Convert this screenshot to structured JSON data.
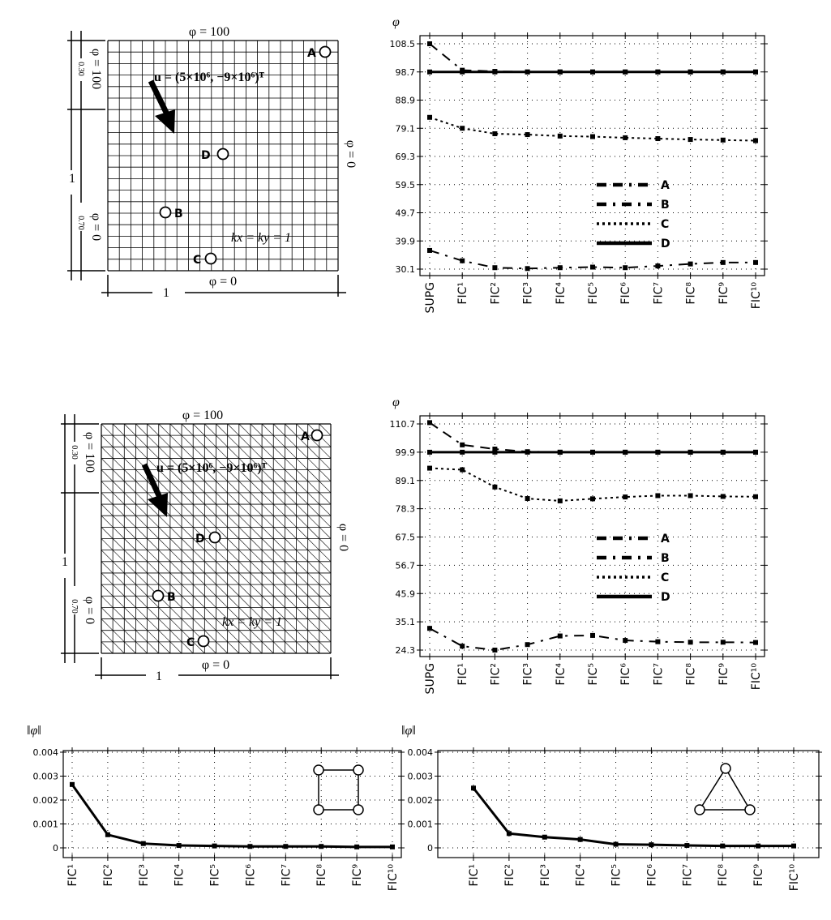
{
  "meshes": [
    {
      "mesh_type": "quadrilateral",
      "divisions": 20,
      "top_bc": "φ = 100",
      "bottom_bc": "φ = 0",
      "right_bc": "φ = 0",
      "left_upper_bc": "φ = 100",
      "left_lower_bc": "φ = 0",
      "left_upper_len": "0.30",
      "left_lower_len": "0.70",
      "height_label": "1",
      "width_label": "1",
      "velocity": "u = (5×10⁶, −9×10⁶)ᵀ",
      "diffusivity": "kx = ky = 1",
      "points": [
        "A",
        "B",
        "C",
        "D"
      ]
    },
    {
      "mesh_type": "triangular",
      "divisions": 20,
      "top_bc": "φ = 100",
      "bottom_bc": "φ = 0",
      "right_bc": "φ = 0",
      "left_upper_bc": "φ = 100",
      "left_lower_bc": "φ = 0",
      "left_upper_len": "0.30",
      "left_lower_len": "0.70",
      "height_label": "1",
      "width_label": "1",
      "velocity": "u = (5×10⁶, −9×10⁶)ᵀ",
      "diffusivity": "kx = ky = 1",
      "points": [
        "A",
        "B",
        "C",
        "D"
      ]
    }
  ],
  "chart_data": [
    {
      "type": "line",
      "ylabel": "φ",
      "categories": [
        "SUPG",
        "FIC¹",
        "FIC²",
        "FIC³",
        "FIC⁴",
        "FIC⁵",
        "FIC⁶",
        "FIC⁷",
        "FIC⁸",
        "FIC⁹",
        "FIC¹⁰"
      ],
      "yticks": [
        "30.1",
        "39.9",
        "49.7",
        "59.5",
        "69.3",
        "79.1",
        "88.9",
        "98.7",
        "108.5"
      ],
      "ylim": [
        30.1,
        108.5
      ],
      "grid": true,
      "legend": "center-right",
      "series": [
        {
          "name": "A",
          "style": "dash-dash-dot",
          "values": [
            108.5,
            99.3,
            98.9,
            98.7,
            98.7,
            98.7,
            98.7,
            98.7,
            98.7,
            98.7,
            98.7
          ]
        },
        {
          "name": "B",
          "style": "dash-dot",
          "values": [
            36.6,
            33.0,
            30.6,
            30.3,
            30.6,
            30.8,
            30.6,
            31.2,
            31.9,
            32.4,
            32.4
          ]
        },
        {
          "name": "C",
          "style": "dotted",
          "values": [
            82.9,
            79.1,
            77.2,
            76.9,
            76.4,
            76.2,
            75.8,
            75.5,
            75.2,
            75.0,
            74.8
          ]
        },
        {
          "name": "D",
          "style": "solid",
          "values": [
            98.7,
            98.7,
            98.7,
            98.7,
            98.7,
            98.7,
            98.7,
            98.7,
            98.7,
            98.7,
            98.7
          ]
        }
      ]
    },
    {
      "type": "line",
      "ylabel": "φ",
      "categories": [
        "SUPG",
        "FIC¹",
        "FIC²",
        "FIC³",
        "FIC⁴",
        "FIC⁵",
        "FIC⁶",
        "FIC⁷",
        "FIC⁸",
        "FIC⁹",
        "FIC¹⁰"
      ],
      "yticks": [
        "24.3",
        "35.1",
        "45.9",
        "56.7",
        "67.5",
        "78.3",
        "89.1",
        "99.9",
        "110.7"
      ],
      "ylim": [
        24.3,
        110.7
      ],
      "grid": true,
      "legend": "center-right",
      "series": [
        {
          "name": "A",
          "style": "dash-dash-dot",
          "values": [
            111.2,
            102.7,
            101.1,
            100.1,
            99.9,
            99.9,
            99.9,
            99.9,
            99.9,
            99.9,
            99.9
          ]
        },
        {
          "name": "B",
          "style": "dash-dot",
          "values": [
            32.6,
            25.8,
            24.3,
            26.4,
            29.7,
            29.9,
            28.0,
            27.5,
            27.3,
            27.3,
            27.2
          ]
        },
        {
          "name": "C",
          "style": "dotted",
          "values": [
            93.8,
            93.2,
            86.6,
            82.2,
            81.3,
            82.1,
            82.8,
            83.3,
            83.3,
            83.0,
            82.9
          ]
        },
        {
          "name": "D",
          "style": "solid",
          "values": [
            99.9,
            99.9,
            99.9,
            99.9,
            99.9,
            99.9,
            99.9,
            99.9,
            99.9,
            99.9,
            99.9
          ]
        }
      ]
    },
    {
      "type": "line",
      "ylabel": "‖φ‖",
      "categories": [
        "FIC¹",
        "FIC²",
        "FIC³",
        "FIC⁴",
        "FIC⁵",
        "FIC⁶",
        "FIC⁷",
        "FIC⁸",
        "FIC⁹",
        "FIC¹⁰"
      ],
      "yticks": [
        "0",
        "0.001",
        "0.002",
        "0.003",
        "0.004"
      ],
      "ylim": [
        0,
        0.004
      ],
      "grid": true,
      "inset_icon": "quadrilateral-element-icon",
      "series": [
        {
          "values": [
            0.00265,
            0.00055,
            0.00018,
            0.0001,
            8e-05,
            6e-05,
            6e-05,
            6e-05,
            4e-05,
            4e-05
          ]
        }
      ]
    },
    {
      "type": "line",
      "ylabel": "‖φ‖",
      "categories": [
        "FIC¹",
        "FIC²",
        "FIC³",
        "FIC⁴",
        "FIC⁵",
        "FIC⁶",
        "FIC⁷",
        "FIC⁸",
        "FIC⁹",
        "FIC¹⁰"
      ],
      "yticks": [
        "0",
        "0.001",
        "0.002",
        "0.003",
        "0.004"
      ],
      "ylim": [
        0,
        0.004
      ],
      "grid": true,
      "inset_icon": "triangular-element-icon",
      "series": [
        {
          "values": [
            0.0025,
            0.0006,
            0.00045,
            0.00035,
            0.00015,
            0.00013,
            0.0001,
            8e-05,
            8e-05,
            8e-05
          ]
        }
      ]
    }
  ]
}
